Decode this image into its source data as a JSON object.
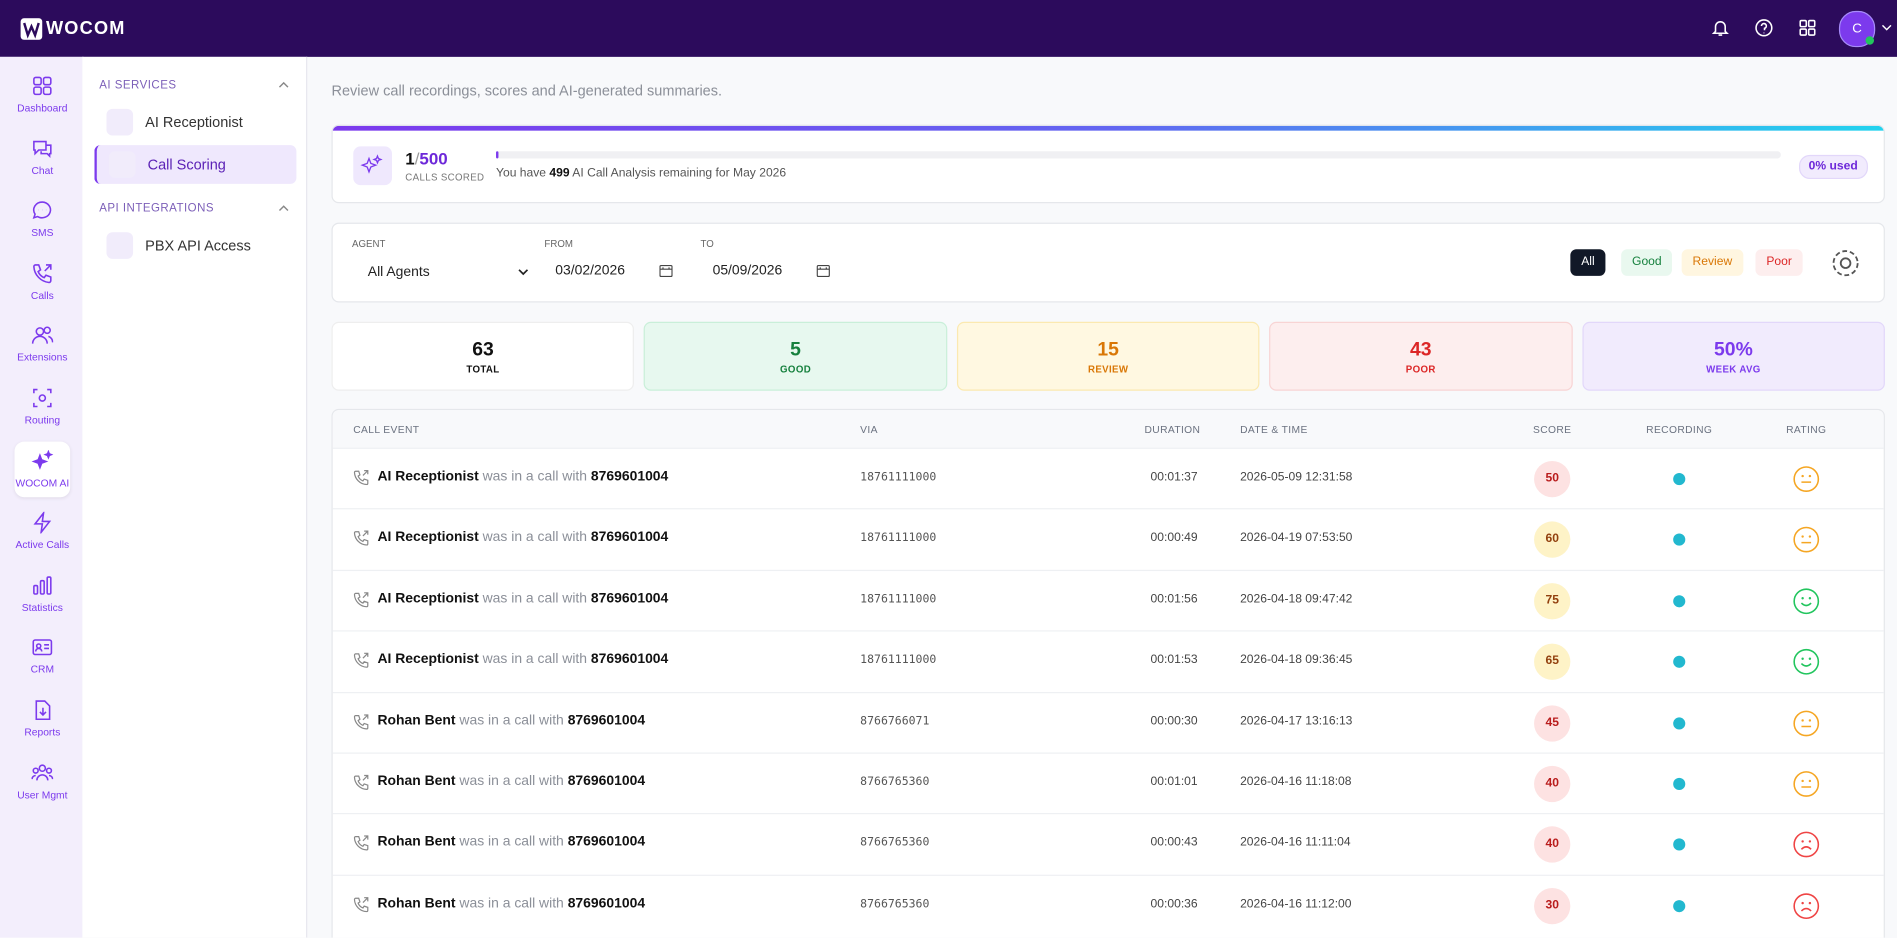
{
  "header": {
    "logo": "WOCOM",
    "avatar": "C"
  },
  "nav": [
    {
      "label": "Dashboard"
    },
    {
      "label": "Chat"
    },
    {
      "label": "SMS"
    },
    {
      "label": "Calls"
    },
    {
      "label": "Extensions"
    },
    {
      "label": "Routing"
    },
    {
      "label": "WOCOM AI",
      "active": true
    },
    {
      "label": "Active Calls"
    },
    {
      "label": "Statistics"
    },
    {
      "label": "CRM"
    },
    {
      "label": "Reports"
    },
    {
      "label": "User Mgmt"
    }
  ],
  "sidebar": {
    "sections": [
      {
        "title": "AI SERVICES",
        "items": [
          {
            "label": "AI Receptionist"
          },
          {
            "label": "Call Scoring",
            "active": true
          }
        ]
      },
      {
        "title": "API INTEGRATIONS",
        "items": [
          {
            "label": "PBX API Access"
          }
        ]
      }
    ]
  },
  "page": {
    "subtitle": "Review call recordings, scores and AI-generated summaries."
  },
  "usage": {
    "used": 1,
    "separator": "/",
    "limit": 500,
    "caption": "CALLS SCORED",
    "note_prefix": "You have",
    "remaining": 499,
    "note_suffix": "AI Call Analysis remaining for May 2026",
    "percent": "0% used"
  },
  "filters": {
    "agent_label": "AGENT",
    "agent": "All Agents",
    "from_label": "FROM",
    "from": "03/02/2026",
    "to_label": "TO",
    "to": "05/09/2026",
    "buttons": [
      {
        "label": "All",
        "tone": "dark"
      },
      {
        "label": "Good",
        "tone": "good"
      },
      {
        "label": "Review",
        "tone": "review"
      },
      {
        "label": "Poor",
        "tone": "poor"
      }
    ]
  },
  "stats": [
    {
      "value": 63,
      "label": "TOTAL",
      "tone": "neutral"
    },
    {
      "value": 5,
      "label": "GOOD",
      "tone": "good"
    },
    {
      "value": 15,
      "label": "REVIEW",
      "tone": "review"
    },
    {
      "value": 43,
      "label": "POOR",
      "tone": "poor"
    },
    {
      "value": "50%",
      "label": "WEEK AVG",
      "tone": "avg"
    }
  ],
  "table": {
    "columns": [
      "CALL EVENT",
      "VIA",
      "DURATION",
      "DATE & TIME",
      "SCORE",
      "RECORDING",
      "RATING"
    ],
    "rows": [
      {
        "agent": "AI Receptionist",
        "text": "was in a call with",
        "number": "8769601004",
        "via": "18761111000",
        "duration": "00:01:37",
        "datetime": "2026-05-09 12:31:58",
        "score": 50,
        "score_tone": "poor",
        "recording": true,
        "rating": "neutral"
      },
      {
        "agent": "AI Receptionist",
        "text": "was in a call with",
        "number": "8769601004",
        "via": "18761111000",
        "duration": "00:00:49",
        "datetime": "2026-04-19 07:53:50",
        "score": 60,
        "score_tone": "review",
        "recording": true,
        "rating": "neutral"
      },
      {
        "agent": "AI Receptionist",
        "text": "was in a call with",
        "number": "8769601004",
        "via": "18761111000",
        "duration": "00:01:56",
        "datetime": "2026-04-18 09:47:42",
        "score": 75,
        "score_tone": "review",
        "recording": true,
        "rating": "happy"
      },
      {
        "agent": "AI Receptionist",
        "text": "was in a call with",
        "number": "8769601004",
        "via": "18761111000",
        "duration": "00:01:53",
        "datetime": "2026-04-18 09:36:45",
        "score": 65,
        "score_tone": "review",
        "recording": true,
        "rating": "happy"
      },
      {
        "agent": "Rohan Bent",
        "text": "was in a call with",
        "number": "8769601004",
        "via": "8766766071",
        "duration": "00:00:30",
        "datetime": "2026-04-17 13:16:13",
        "score": 45,
        "score_tone": "poor",
        "recording": true,
        "rating": "neutral"
      },
      {
        "agent": "Rohan Bent",
        "text": "was in a call with",
        "number": "8769601004",
        "via": "8766765360",
        "duration": "00:01:01",
        "datetime": "2026-04-16 11:18:08",
        "score": 40,
        "score_tone": "poor",
        "recording": true,
        "rating": "neutral"
      },
      {
        "agent": "Rohan Bent",
        "text": "was in a call with",
        "number": "8769601004",
        "via": "8766765360",
        "duration": "00:00:43",
        "datetime": "2026-04-16 11:11:04",
        "score": 40,
        "score_tone": "poor",
        "recording": true,
        "rating": "sad"
      },
      {
        "agent": "Rohan Bent",
        "text": "was in a call with",
        "number": "8769601004",
        "via": "8766765360",
        "duration": "00:00:36",
        "datetime": "2026-04-16 11:12:00",
        "score": 30,
        "score_tone": "poor",
        "recording": true,
        "rating": "sad"
      }
    ]
  }
}
